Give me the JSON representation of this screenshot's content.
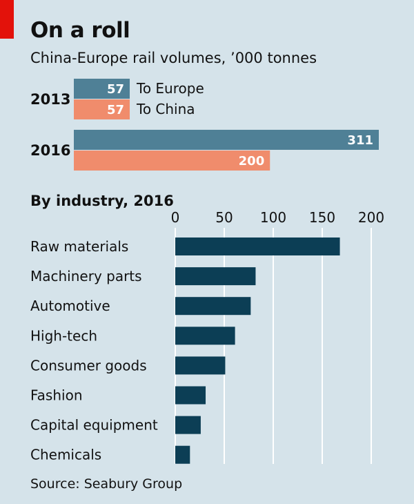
{
  "title": "On a roll",
  "subtitle": "China-Europe rail volumes, ’000 tonnes",
  "source": "Source: Seabury Group",
  "colors": {
    "to_europe": "#4f8096",
    "to_china": "#f08c6c",
    "industry": "#0c3e55",
    "accent": "#e3120b",
    "background": "#d5e3ea",
    "gridline": "#ffffff"
  },
  "chart_data": [
    {
      "type": "bar",
      "orientation": "horizontal",
      "title": "",
      "categories": [
        "2013",
        "2016"
      ],
      "series": [
        {
          "name": "To Europe",
          "values": [
            57,
            311
          ]
        },
        {
          "name": "To China",
          "values": [
            57,
            200
          ]
        }
      ],
      "data_labels": true,
      "legend": "inline next to 2013 bars"
    },
    {
      "type": "bar",
      "orientation": "horizontal",
      "title": "By industry, 2016",
      "categories": [
        "Raw materials",
        "Machinery parts",
        "Automotive",
        "High-tech",
        "Consumer goods",
        "Fashion",
        "Capital equipment",
        "Chemicals"
      ],
      "values": [
        168,
        82,
        77,
        61,
        51,
        31,
        26,
        15
      ],
      "xlim": [
        0,
        210
      ],
      "xticks": [
        0,
        50,
        100,
        150,
        200
      ],
      "grid": true
    }
  ]
}
